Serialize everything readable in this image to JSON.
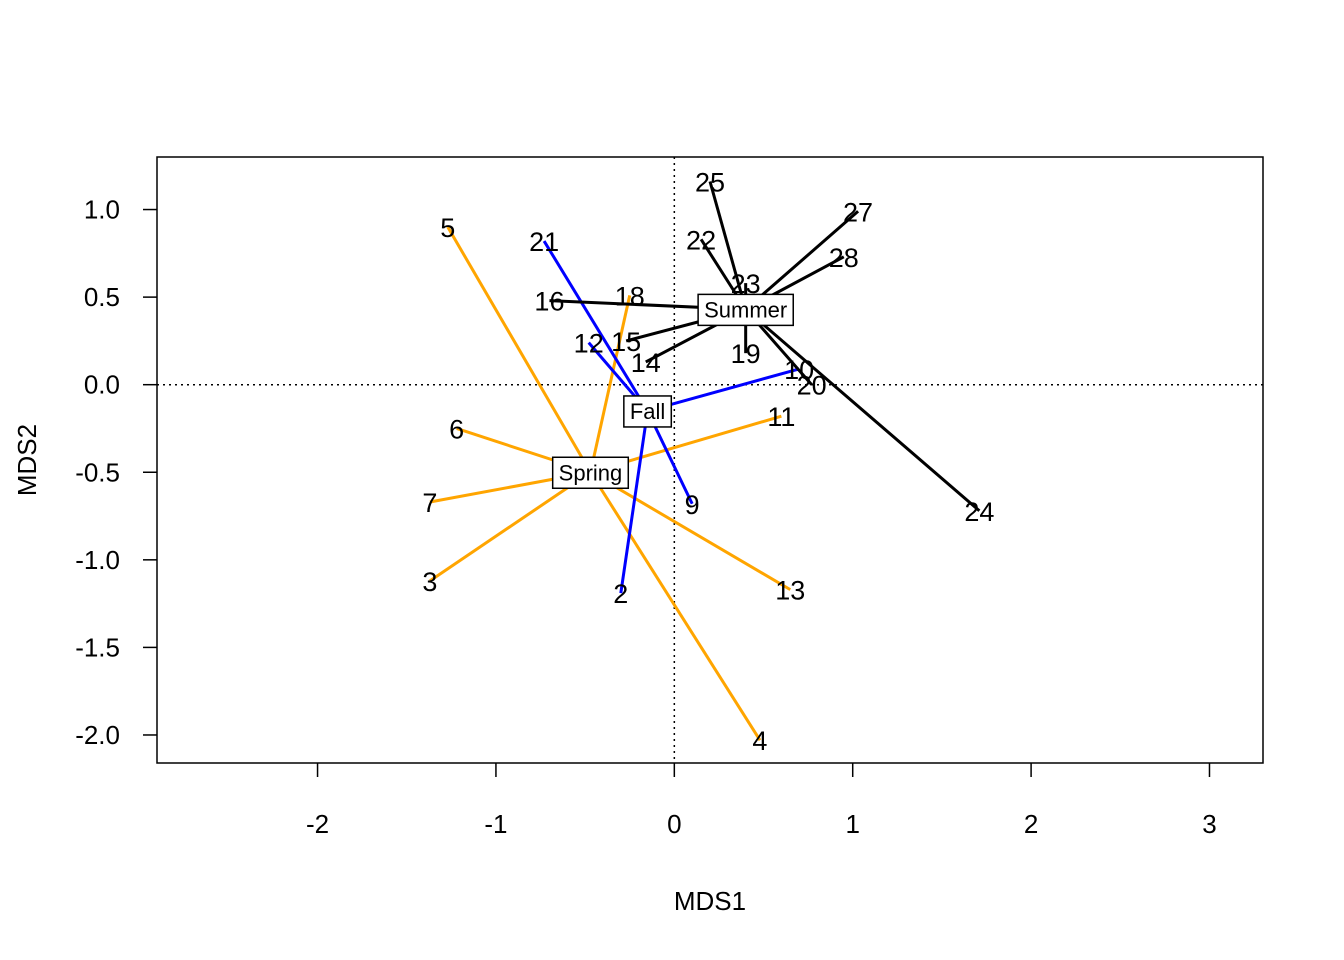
{
  "chart_data": {
    "type": "scatter",
    "xlabel": "MDS1",
    "ylabel": "MDS2",
    "xlim": [
      -2.9,
      3.3
    ],
    "ylim": [
      -2.16,
      1.3
    ],
    "xticks": [
      "-2",
      "-1",
      "0",
      "1",
      "2",
      "3"
    ],
    "yticks": [
      "1.0",
      "0.5",
      "0.0",
      "-0.5",
      "-1.0",
      "-1.5",
      "-2.0"
    ],
    "reference_lines": "dotted lines at x = 0 and y = 0",
    "grid": false,
    "colors": {
      "Spring": "#FFA500",
      "Fall": "#0000FF",
      "Summer": "#000000"
    },
    "groups": [
      {
        "name": "Spring",
        "centroid": [
          -0.47,
          -0.5
        ],
        "points": [
          {
            "label": "5",
            "x": -1.27,
            "y": 0.9
          },
          {
            "label": "18",
            "x": -0.25,
            "y": 0.51
          },
          {
            "label": "6",
            "x": -1.22,
            "y": -0.25
          },
          {
            "label": "7",
            "x": -1.37,
            "y": -0.67
          },
          {
            "label": "3",
            "x": -1.37,
            "y": -1.12
          },
          {
            "label": "11",
            "x": 0.6,
            "y": -0.18
          },
          {
            "label": "13",
            "x": 0.65,
            "y": -1.17
          },
          {
            "label": "4",
            "x": 0.48,
            "y": -2.03
          }
        ]
      },
      {
        "name": "Fall",
        "centroid": [
          -0.15,
          -0.15
        ],
        "points": [
          {
            "label": "21",
            "x": -0.73,
            "y": 0.82
          },
          {
            "label": "12",
            "x": -0.48,
            "y": 0.24
          },
          {
            "label": "9",
            "x": 0.1,
            "y": -0.68
          },
          {
            "label": "2",
            "x": -0.3,
            "y": -1.19
          },
          {
            "label": "10",
            "x": 0.7,
            "y": 0.09
          }
        ]
      },
      {
        "name": "Summer",
        "centroid": [
          0.4,
          0.43
        ],
        "points": [
          {
            "label": "25",
            "x": 0.2,
            "y": 1.16
          },
          {
            "label": "22",
            "x": 0.15,
            "y": 0.83
          },
          {
            "label": "23",
            "x": 0.4,
            "y": 0.58
          },
          {
            "label": "27",
            "x": 1.03,
            "y": 0.99
          },
          {
            "label": "28",
            "x": 0.95,
            "y": 0.73
          },
          {
            "label": "16",
            "x": -0.7,
            "y": 0.48
          },
          {
            "label": "15",
            "x": -0.27,
            "y": 0.25
          },
          {
            "label": "14",
            "x": -0.16,
            "y": 0.13
          },
          {
            "label": "19",
            "x": 0.4,
            "y": 0.18
          },
          {
            "label": "20",
            "x": 0.77,
            "y": 0.0
          },
          {
            "label": "24",
            "x": 1.71,
            "y": -0.72
          }
        ]
      }
    ]
  }
}
